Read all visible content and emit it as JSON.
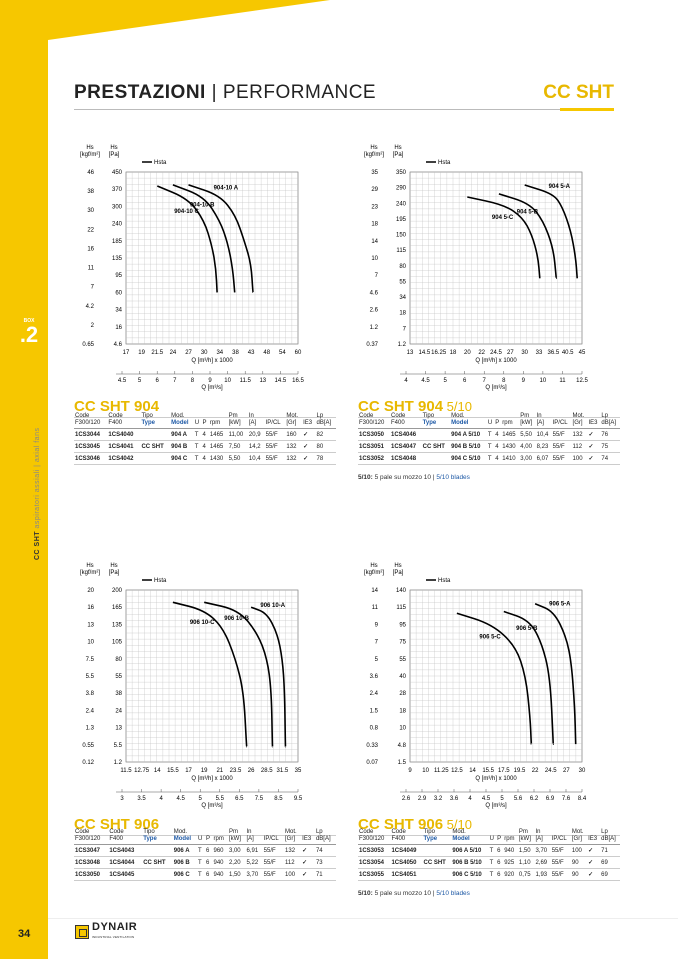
{
  "header": {
    "title_bold": "PRESTAZIONI",
    "title_rest": " | PERFORMANCE",
    "series": "CC SHT"
  },
  "section": {
    "small": "BOX",
    "number": ".2"
  },
  "side": {
    "bold": "CC SHT",
    "rest": " aspiratori assiali | axial fans"
  },
  "page": {
    "number": "34"
  },
  "logo": {
    "name": "DYNAIR",
    "tagline": "INDUSTRIAL VENTILATION"
  },
  "colors": {
    "accent": "#f6c700",
    "accent_text": "#e8b800",
    "link_blue": "#1f5aa6"
  },
  "table_headers": {
    "code1": "Code",
    "code1b": "F300/120",
    "code2": "Code",
    "code2b": "F400",
    "tipo": "Tipo",
    "type": "Type",
    "mod": "Mod.",
    "model": "Model",
    "u": "U",
    "p": "P",
    "rpm": "rpm",
    "pm": "Pm",
    "pm_u": "[kW]",
    "in": "In",
    "in_u": "[A]",
    "ipcl": "IP/CL",
    "mot": "Mot.",
    "mot_u": "[Gr]",
    "ie3": "IE3",
    "lp": "Lp",
    "lp_u": "dB[A]"
  },
  "chart_data": [
    {
      "type": "line",
      "id": "904",
      "y_left_label": "Hs\n[kgf/m²]",
      "y_right_label": "Hs\n[Pa]",
      "legend": "Hsta",
      "y_left_ticks": [
        "46",
        "38",
        "30",
        "22",
        "16",
        "11",
        "7",
        "4.2",
        "2",
        "0.65"
      ],
      "y_right_ticks": [
        "450",
        "370",
        "300",
        "240",
        "185",
        "135",
        "95",
        "60",
        "34",
        "16",
        "4.6"
      ],
      "x_ticks": [
        "17",
        "19",
        "21.5",
        "24",
        "27",
        "30",
        "34",
        "38",
        "43",
        "48",
        "54",
        "60"
      ],
      "xlabel": "Q [m³/h] x 1000",
      "x2_ticks": [
        "4.5",
        "5",
        "6",
        "7",
        "8",
        "9",
        "10",
        "11.5",
        "13",
        "14.5",
        "16.5"
      ],
      "x2label": "Q [m³/s]",
      "series": [
        {
          "name": "904-10 A",
          "points": [
            [
              27,
              390
            ],
            [
              34,
              345
            ],
            [
              38,
              270
            ],
            [
              41,
              180
            ],
            [
              43,
              120
            ],
            [
              43.6,
              60
            ]
          ]
        },
        {
          "name": "904-10 B",
          "points": [
            [
              24,
              390
            ],
            [
              30,
              340
            ],
            [
              34,
              250
            ],
            [
              36,
              180
            ],
            [
              37.3,
              110
            ],
            [
              37.8,
              60
            ]
          ]
        },
        {
          "name": "904-10 C",
          "points": [
            [
              21.5,
              385
            ],
            [
              27,
              330
            ],
            [
              30,
              250
            ],
            [
              32,
              170
            ],
            [
              33,
              110
            ],
            [
              33.3,
              60
            ]
          ]
        }
      ]
    },
    {
      "type": "line",
      "id": "904 5/10",
      "y_left_label": "Hs\n[kgf/m²]",
      "y_right_label": "Hs\n[Pa]",
      "legend": "Hsta",
      "y_left_ticks": [
        "35",
        "29",
        "23",
        "18",
        "14",
        "10",
        "7",
        "4.6",
        "2.6",
        "1.2",
        "0.37"
      ],
      "y_right_ticks": [
        "350",
        "290",
        "240",
        "195",
        "150",
        "115",
        "80",
        "55",
        "34",
        "18",
        "7",
        "1.2"
      ],
      "x_ticks": [
        "13",
        "14.5",
        "16.25",
        "18",
        "20",
        "22",
        "24.5",
        "27",
        "30",
        "33",
        "36.5",
        "40.5",
        "45"
      ],
      "xlabel": "Q [m³/h] x 1000",
      "x2_ticks": [
        "4",
        "4.5",
        "5",
        "6",
        "7",
        "8",
        "9",
        "10",
        "11",
        "12.5"
      ],
      "x2label": "Q [m³/s]",
      "series": [
        {
          "name": "904 5-A",
          "points": [
            [
              30,
              300
            ],
            [
              36.5,
              270
            ],
            [
              39,
              230
            ],
            [
              41.5,
              160
            ],
            [
              43,
              100
            ],
            [
              43.5,
              60
            ]
          ]
        },
        {
          "name": "904 5-B",
          "points": [
            [
              25,
              270
            ],
            [
              31,
              240
            ],
            [
              34,
              190
            ],
            [
              36.5,
              120
            ],
            [
              37.3,
              60
            ]
          ]
        },
        {
          "name": "904 5-C",
          "points": [
            [
              20,
              260
            ],
            [
              26,
              235
            ],
            [
              29.5,
              200
            ],
            [
              31.5,
              150
            ],
            [
              32.8,
              100
            ],
            [
              33.2,
              60
            ]
          ]
        }
      ]
    },
    {
      "type": "line",
      "id": "906",
      "y_left_label": "Hs\n[kgf/m²]",
      "y_right_label": "Hs\n[Pa]",
      "legend": "Hsta",
      "y_left_ticks": [
        "20",
        "16",
        "13",
        "10",
        "7.5",
        "5.5",
        "3.8",
        "2.4",
        "1.3",
        "0.55",
        "0.12"
      ],
      "y_right_ticks": [
        "200",
        "165",
        "135",
        "105",
        "80",
        "55",
        "38",
        "24",
        "13",
        "5.5",
        "1.2"
      ],
      "x_ticks": [
        "11.5",
        "12.75",
        "14",
        "15.5",
        "17",
        "19",
        "21",
        "23.5",
        "26",
        "28.5",
        "31.5",
        "35"
      ],
      "xlabel": "Q [m³/h] x 1000",
      "x2_ticks": [
        "3",
        "3.5",
        "4",
        "4.5",
        "5",
        "5.5",
        "6.5",
        "7.5",
        "8.5",
        "9.5"
      ],
      "x2label": "Q [m³/s]",
      "series": [
        {
          "name": "906 10-A",
          "points": [
            [
              26,
              165
            ],
            [
              28.5,
              155
            ],
            [
              30.5,
              120
            ],
            [
              31.5,
              80
            ],
            [
              32,
              40
            ],
            [
              32.2,
              5
            ]
          ]
        },
        {
          "name": "906 10-B",
          "points": [
            [
              19,
              175
            ],
            [
              24,
              160
            ],
            [
              27,
              120
            ],
            [
              28.6,
              80
            ],
            [
              29.4,
              40
            ],
            [
              29.6,
              5
            ]
          ]
        },
        {
          "name": "906 10-C",
          "points": [
            [
              15.5,
              175
            ],
            [
              19,
              160
            ],
            [
              21.5,
              130
            ],
            [
              23.5,
              80
            ],
            [
              24.8,
              40
            ],
            [
              25.3,
              5
            ]
          ]
        }
      ]
    },
    {
      "type": "line",
      "id": "906 5/10",
      "y_left_label": "Hs\n[kgf/m²]",
      "y_right_label": "Hs\n[Pa]",
      "legend": "Hsta",
      "y_left_ticks": [
        "14",
        "11",
        "9",
        "7",
        "5",
        "3.6",
        "2.4",
        "1.5",
        "0.8",
        "0.33",
        "0.07"
      ],
      "y_right_ticks": [
        "140",
        "115",
        "95",
        "75",
        "55",
        "40",
        "28",
        "18",
        "10",
        "4.8",
        "1.5"
      ],
      "x_ticks": [
        "9",
        "10",
        "11.25",
        "12.5",
        "14",
        "15.5",
        "17.5",
        "19.5",
        "22",
        "24.5",
        "27",
        "30"
      ],
      "xlabel": "Q [m³/h] x 1000",
      "x2_ticks": [
        "2.6",
        "2.9",
        "3.2",
        "3.6",
        "4",
        "4.5",
        "5",
        "5.6",
        "6.2",
        "6.9",
        "7.6",
        "8.4"
      ],
      "x2label": "Q [m³/s]",
      "series": [
        {
          "name": "906 5-A",
          "points": [
            [
              22,
              120
            ],
            [
              25,
              110
            ],
            [
              27,
              80
            ],
            [
              28,
              50
            ],
            [
              28.6,
              20
            ],
            [
              28.8,
              5
            ]
          ]
        },
        {
          "name": "906 5-B",
          "points": [
            [
              17.5,
              110
            ],
            [
              21,
              100
            ],
            [
              23,
              75
            ],
            [
              24.4,
              40
            ],
            [
              24.9,
              5
            ]
          ]
        },
        {
          "name": "906 5-C",
          "points": [
            [
              12.5,
              108
            ],
            [
              16,
              95
            ],
            [
              19,
              70
            ],
            [
              20.5,
              40
            ],
            [
              21.2,
              15
            ],
            [
              21.4,
              5
            ]
          ]
        }
      ]
    }
  ],
  "blocks": [
    {
      "title": "CC SHT",
      "title_num": "904",
      "title_sub": "",
      "rows": [
        {
          "c1": "1CS3044",
          "c2": "1CS4040",
          "type": "",
          "model": "904 A",
          "u": "T",
          "p": "4",
          "rpm": "1465",
          "pm": "11,00",
          "in": "20,9",
          "ip": "55/F",
          "mot": "160",
          "lp": "82"
        },
        {
          "c1": "1CS3045",
          "c2": "1CS4041",
          "type": "CC SHT",
          "model": "904 B",
          "u": "T",
          "p": "4",
          "rpm": "1465",
          "pm": "7,50",
          "in": "14,2",
          "ip": "55/F",
          "mot": "132",
          "lp": "80"
        },
        {
          "c1": "1CS3046",
          "c2": "1CS4042",
          "type": "",
          "model": "904 C",
          "u": "T",
          "p": "4",
          "rpm": "1430",
          "pm": "5,50",
          "in": "10,4",
          "ip": "55/F",
          "mot": "132",
          "lp": "78"
        }
      ],
      "note": null
    },
    {
      "title": "CC SHT",
      "title_num": "904",
      "title_sub": " 5/10",
      "rows": [
        {
          "c1": "1CS3050",
          "c2": "1CS4046",
          "type": "",
          "model": "904 A 5/10",
          "u": "T",
          "p": "4",
          "rpm": "1465",
          "pm": "5,50",
          "in": "10,4",
          "ip": "55/F",
          "mot": "132",
          "lp": "76"
        },
        {
          "c1": "1CS3051",
          "c2": "1CS4047",
          "type": "CC SHT",
          "model": "904 B 5/10",
          "u": "T",
          "p": "4",
          "rpm": "1430",
          "pm": "4,00",
          "in": "8,23",
          "ip": "55/F",
          "mot": "112",
          "lp": "75"
        },
        {
          "c1": "1CS3052",
          "c2": "1CS4048",
          "type": "",
          "model": "904 C 5/10",
          "u": "T",
          "p": "4",
          "rpm": "1410",
          "pm": "3,00",
          "in": "6,07",
          "ip": "55/F",
          "mot": "100",
          "lp": "74"
        }
      ],
      "note": {
        "bold": "5/10:",
        "it": " 5 pale su mozzo 10 | ",
        "en": "5/10 blades"
      }
    },
    {
      "title": "CC SHT",
      "title_num": "906",
      "title_sub": "",
      "rows": [
        {
          "c1": "1CS3047",
          "c2": "1CS4043",
          "type": "",
          "model": "906 A",
          "u": "T",
          "p": "6",
          "rpm": "960",
          "pm": "3,00",
          "in": "6,91",
          "ip": "55/F",
          "mot": "132",
          "lp": "74"
        },
        {
          "c1": "1CS3048",
          "c2": "1CS4044",
          "type": "CC SHT",
          "model": "906 B",
          "u": "T",
          "p": "6",
          "rpm": "940",
          "pm": "2,20",
          "in": "5,22",
          "ip": "55/F",
          "mot": "112",
          "lp": "73"
        },
        {
          "c1": "1CS3050",
          "c2": "1CS4045",
          "type": "",
          "model": "906 C",
          "u": "T",
          "p": "6",
          "rpm": "940",
          "pm": "1,50",
          "in": "3,70",
          "ip": "55/F",
          "mot": "100",
          "lp": "71"
        }
      ],
      "note": null
    },
    {
      "title": "CC SHT",
      "title_num": "906",
      "title_sub": " 5/10",
      "rows": [
        {
          "c1": "1CS3053",
          "c2": "1CS4049",
          "type": "",
          "model": "906 A 5/10",
          "u": "T",
          "p": "6",
          "rpm": "940",
          "pm": "1,50",
          "in": "3,70",
          "ip": "55/F",
          "mot": "100",
          "lp": "71"
        },
        {
          "c1": "1CS3054",
          "c2": "1CS4050",
          "type": "CC SHT",
          "model": "906 B 5/10",
          "u": "T",
          "p": "6",
          "rpm": "925",
          "pm": "1,10",
          "in": "2,69",
          "ip": "55/F",
          "mot": "90",
          "lp": "69"
        },
        {
          "c1": "1CS3055",
          "c2": "1CS4051",
          "type": "",
          "model": "906 C 5/10",
          "u": "T",
          "p": "6",
          "rpm": "920",
          "pm": "0,75",
          "in": "1,93",
          "ip": "55/F",
          "mot": "90",
          "lp": "69"
        }
      ],
      "note": {
        "bold": "5/10:",
        "it": " 5 pale su mozzo 10 | ",
        "en": "5/10 blades"
      }
    }
  ]
}
